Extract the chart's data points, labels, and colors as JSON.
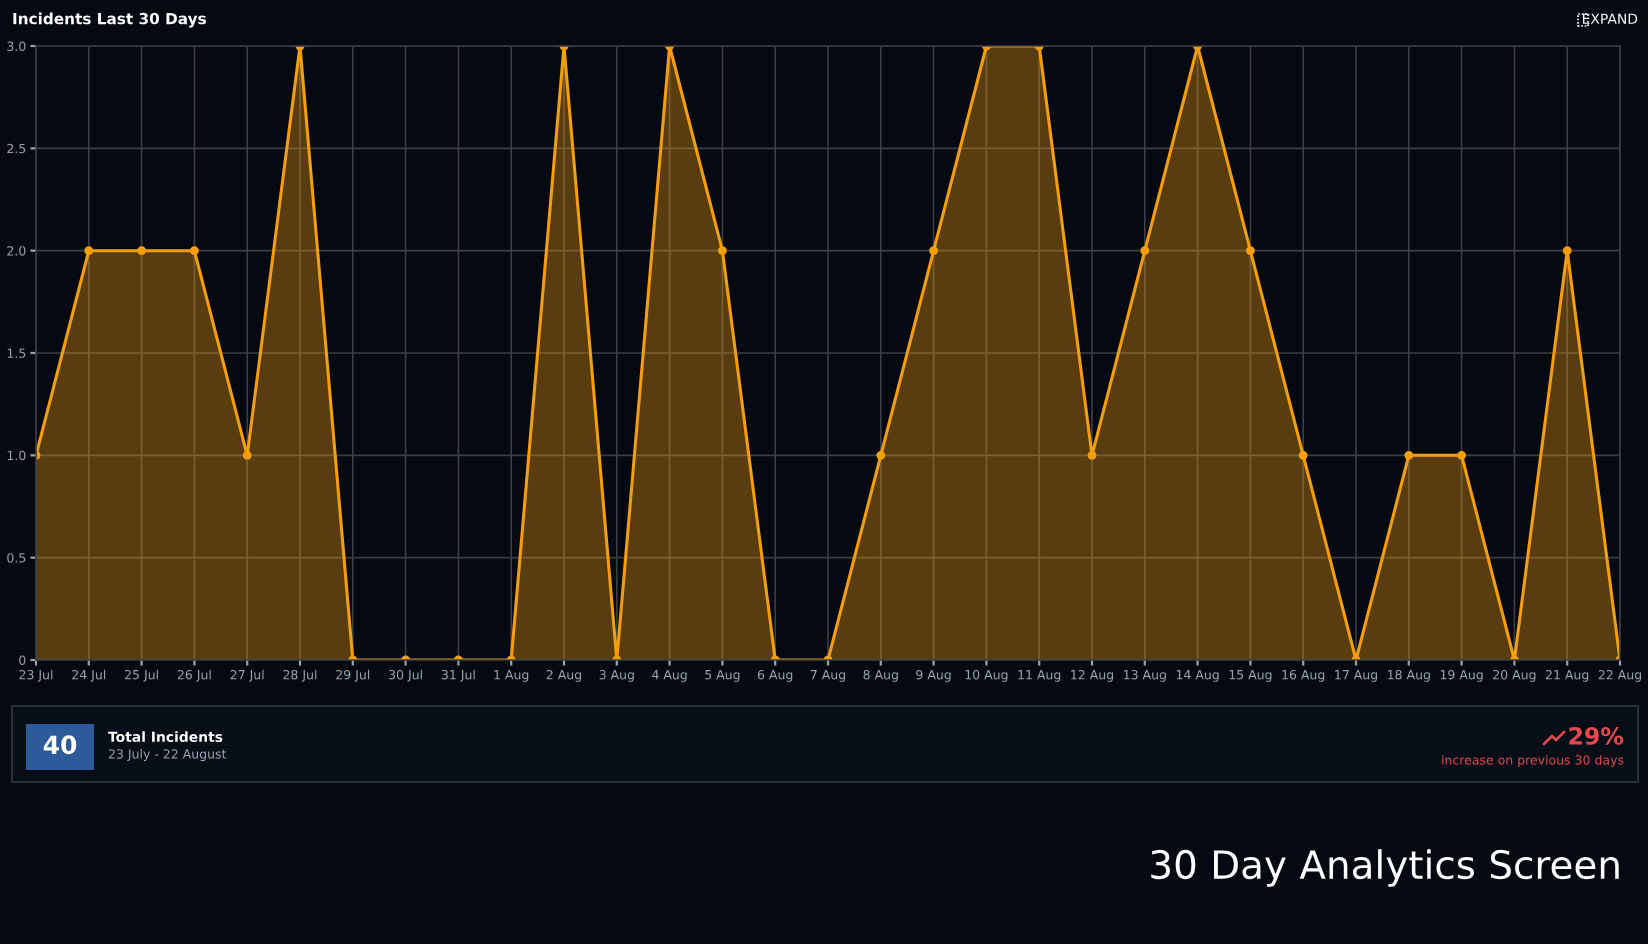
{
  "chart_data": {
    "type": "area",
    "title": "Incidents Last 30 Days",
    "categories": [
      "23 Jul",
      "24 Jul",
      "25 Jul",
      "26 Jul",
      "27 Jul",
      "28 Jul",
      "29 Jul",
      "30 Jul",
      "31 Jul",
      "1 Aug",
      "2 Aug",
      "3 Aug",
      "4 Aug",
      "5 Aug",
      "6 Aug",
      "7 Aug",
      "8 Aug",
      "9 Aug",
      "10 Aug",
      "11 Aug",
      "12 Aug",
      "13 Aug",
      "14 Aug",
      "15 Aug",
      "16 Aug",
      "17 Aug",
      "18 Aug",
      "19 Aug",
      "20 Aug",
      "21 Aug",
      "22 Aug"
    ],
    "series": [
      {
        "color": "#f59e0b",
        "values": [
          1,
          2,
          2,
          2,
          1,
          3,
          0,
          0,
          0,
          0,
          3,
          0,
          3,
          2,
          0,
          0,
          1,
          2,
          3,
          3,
          1,
          2,
          3,
          2,
          1,
          0,
          1,
          1,
          0,
          2,
          0
        ]
      }
    ],
    "ylim": [
      0,
      3
    ],
    "yticks": [
      0,
      0.5,
      {
        "value": 1,
        "label": "1.0"
      },
      1.5,
      {
        "value": 2,
        "label": "2.0"
      },
      2.5,
      {
        "value": 3,
        "label": "3.0"
      }
    ],
    "grid": true,
    "marker": "circle",
    "line_style": "solid",
    "annotations": [
      "EXPAND",
      "40",
      "Total Incidents",
      "23 July - 22 August",
      "29%",
      "increase on previous 30 days",
      "30 Day Analytics Screen"
    ]
  }
}
